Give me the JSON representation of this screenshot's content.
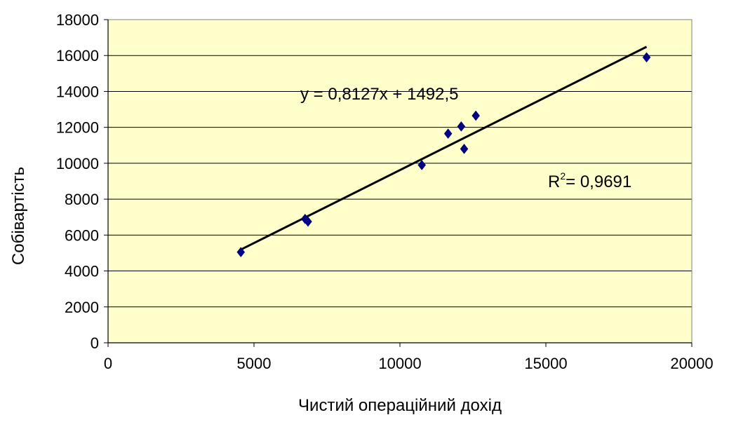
{
  "chart_data": {
    "type": "scatter",
    "xlabel": "Чистий операційний дохід",
    "ylabel": "Собівартість",
    "xlim": [
      0,
      20000
    ],
    "ylim": [
      0,
      18000
    ],
    "x_ticks": [
      "0",
      "5000",
      "10000",
      "15000",
      "20000"
    ],
    "y_ticks": [
      "0",
      "2000",
      "4000",
      "6000",
      "8000",
      "10000",
      "12000",
      "14000",
      "16000",
      "18000"
    ],
    "grid": "horizontal",
    "plot_background": "#FFFFCC",
    "series": [
      {
        "color": "#000080",
        "marker": "diamond",
        "points": [
          {
            "x": 4550,
            "y": 5050
          },
          {
            "x": 6750,
            "y": 6900
          },
          {
            "x": 6850,
            "y": 6750
          },
          {
            "x": 10750,
            "y": 9900
          },
          {
            "x": 11650,
            "y": 11650
          },
          {
            "x": 12100,
            "y": 12050
          },
          {
            "x": 12200,
            "y": 10800
          },
          {
            "x": 12600,
            "y": 12650
          },
          {
            "x": 18450,
            "y": 15900
          }
        ]
      }
    ],
    "trendline": {
      "slope": 0.8127,
      "intercept": 1492.5,
      "x_range": [
        4550,
        18450
      ],
      "color": "#000000",
      "equation_label": "y = 0,8127x + 1492,5",
      "r2_prefix": "R",
      "r2_sup": "2",
      "r2_value": "= 0,9691"
    }
  }
}
